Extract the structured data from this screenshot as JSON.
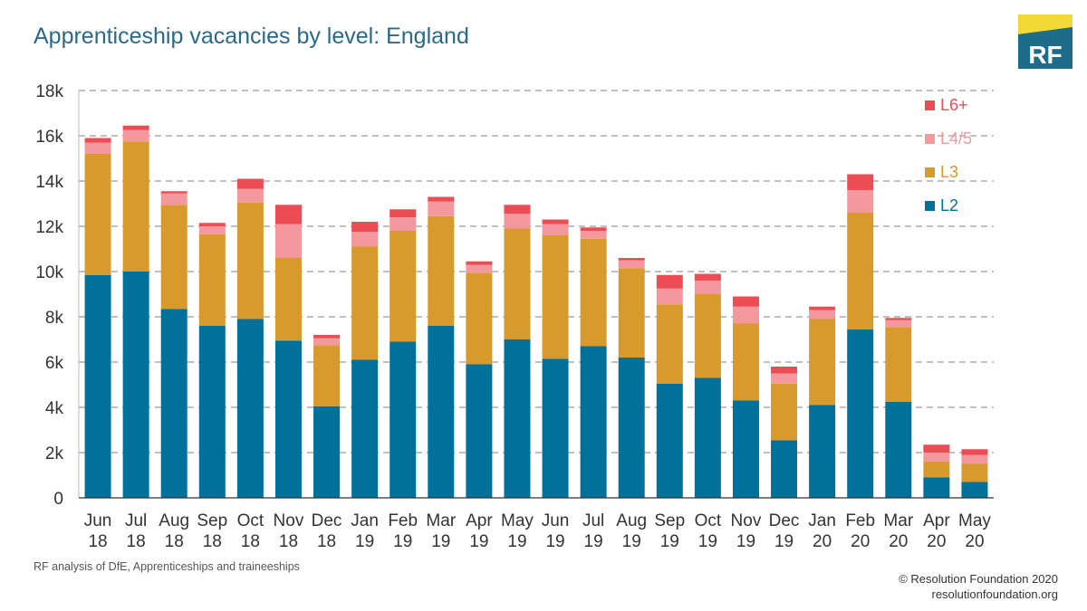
{
  "title": "Apprenticeship vacancies by level: England",
  "source": "RF analysis of DfE, Apprenticeships and traineeships",
  "credit": {
    "line1": "© Resolution Foundation 2020",
    "line2": "resolutionfoundation.org"
  },
  "logo": {
    "text": "RF",
    "box_color": "#1d6d8a",
    "flag_color": "#f2d935"
  },
  "chart_data": {
    "type": "bar",
    "stacked": true,
    "grid": true,
    "legend_position": "top-right",
    "ylim": [
      0,
      18000
    ],
    "y_ticks": [
      0,
      2000,
      4000,
      6000,
      8000,
      10000,
      12000,
      14000,
      16000,
      18000
    ],
    "y_tick_labels": [
      "0",
      "2k",
      "4k",
      "6k",
      "8k",
      "10k",
      "12k",
      "14k",
      "16k",
      "18k"
    ],
    "categories": [
      [
        "Jun",
        "18"
      ],
      [
        "Jul",
        "18"
      ],
      [
        "Aug",
        "18"
      ],
      [
        "Sep",
        "18"
      ],
      [
        "Oct",
        "18"
      ],
      [
        "Nov",
        "18"
      ],
      [
        "Dec",
        "18"
      ],
      [
        "Jan",
        "19"
      ],
      [
        "Feb",
        "19"
      ],
      [
        "Mar",
        "19"
      ],
      [
        "Apr",
        "19"
      ],
      [
        "May",
        "19"
      ],
      [
        "Jun",
        "19"
      ],
      [
        "Jul",
        "19"
      ],
      [
        "Aug",
        "19"
      ],
      [
        "Sep",
        "19"
      ],
      [
        "Oct",
        "19"
      ],
      [
        "Nov",
        "19"
      ],
      [
        "Dec",
        "19"
      ],
      [
        "Jan",
        "20"
      ],
      [
        "Feb",
        "20"
      ],
      [
        "Mar",
        "20"
      ],
      [
        "Apr",
        "20"
      ],
      [
        "May",
        "20"
      ]
    ],
    "series": [
      {
        "name": "L2",
        "color": "#00719b",
        "values": [
          9850,
          10000,
          8350,
          7600,
          7900,
          6950,
          4050,
          6100,
          6900,
          7600,
          5900,
          7000,
          6150,
          6700,
          6200,
          5050,
          5300,
          4300,
          2550,
          4100,
          7450,
          4250,
          900,
          700
        ]
      },
      {
        "name": "L3",
        "color": "#d8992d",
        "values": [
          5350,
          5750,
          4600,
          4050,
          5150,
          3650,
          2700,
          5000,
          4900,
          4850,
          4050,
          4900,
          5450,
          4750,
          3950,
          3500,
          3700,
          3400,
          2500,
          3800,
          5150,
          3300,
          700,
          800
        ]
      },
      {
        "name": "L4/5",
        "color": "#f3989c",
        "values": [
          500,
          500,
          500,
          350,
          600,
          1500,
          300,
          650,
          600,
          650,
          350,
          650,
          500,
          350,
          350,
          700,
          600,
          750,
          450,
          400,
          1000,
          300,
          400,
          400
        ]
      },
      {
        "name": "L6+",
        "color": "#ec4d55",
        "values": [
          200,
          200,
          100,
          150,
          450,
          850,
          150,
          450,
          350,
          200,
          150,
          400,
          200,
          150,
          100,
          600,
          300,
          450,
          300,
          150,
          700,
          100,
          350,
          250
        ]
      }
    ],
    "legend_order": [
      "L6+",
      "L4/5",
      "L3",
      "L2"
    ]
  }
}
